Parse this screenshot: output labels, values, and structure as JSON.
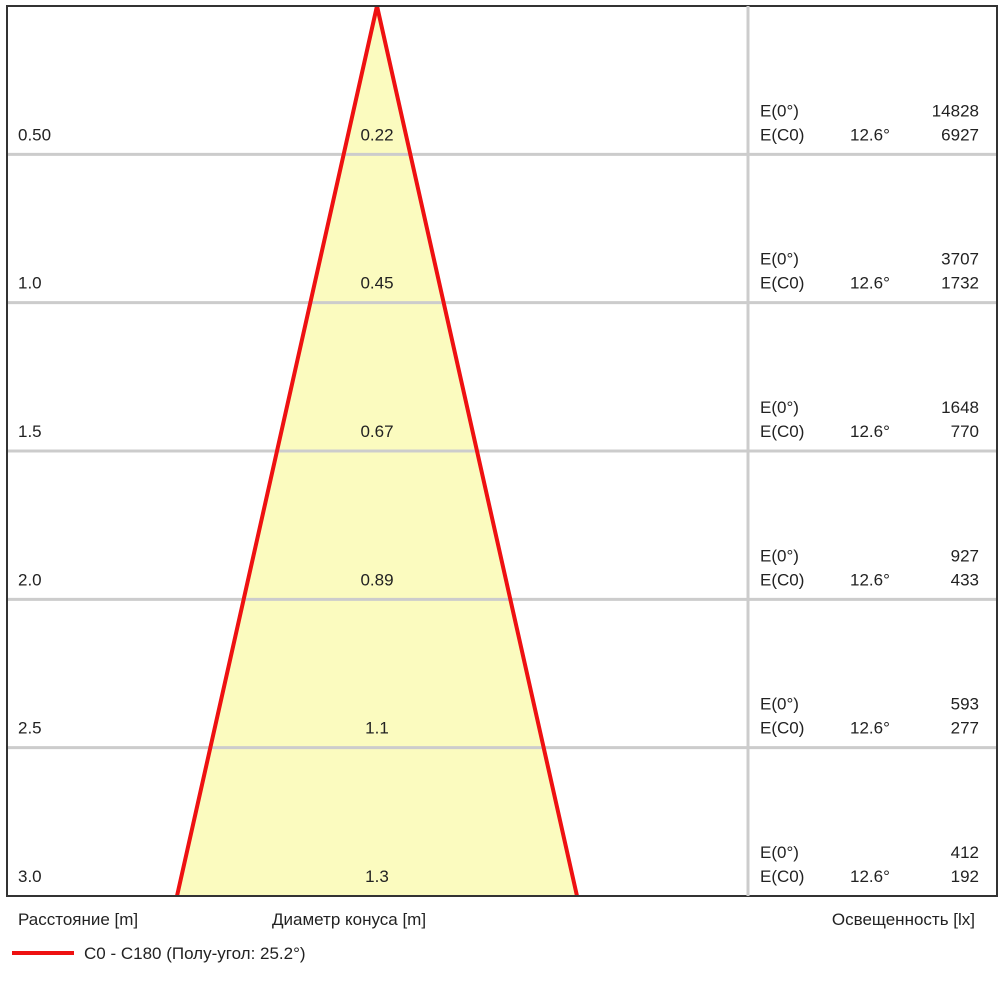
{
  "chart_data": {
    "type": "cone-diagram",
    "rows": [
      {
        "distance": "0.50",
        "diameter": "0.22",
        "e0": "14828",
        "ec0": "6927"
      },
      {
        "distance": "1.0",
        "diameter": "0.45",
        "e0": "3707",
        "ec0": "1732"
      },
      {
        "distance": "1.5",
        "diameter": "0.67",
        "e0": "1648",
        "ec0": "770"
      },
      {
        "distance": "2.0",
        "diameter": "0.89",
        "e0": "927",
        "ec0": "433"
      },
      {
        "distance": "2.5",
        "diameter": "1.1",
        "e0": "593",
        "ec0": "277"
      },
      {
        "distance": "3.0",
        "diameter": "1.3",
        "e0": "412",
        "ec0": "192"
      }
    ],
    "e0_label": "E(0°)",
    "ec0_label": "E(C0)",
    "ec0_angle": "12.6°",
    "xlabel_distance": "Расстояние [m]",
    "xlabel_diameter": "Диаметр конуса [m]",
    "xlabel_illuminance": "Освещенность [lx]",
    "legend": {
      "label": "C0 - C180 (Полу-угол: 25.2°)",
      "color": "#ee1111"
    },
    "fill_color": "#fbfbbf",
    "grid": true
  }
}
